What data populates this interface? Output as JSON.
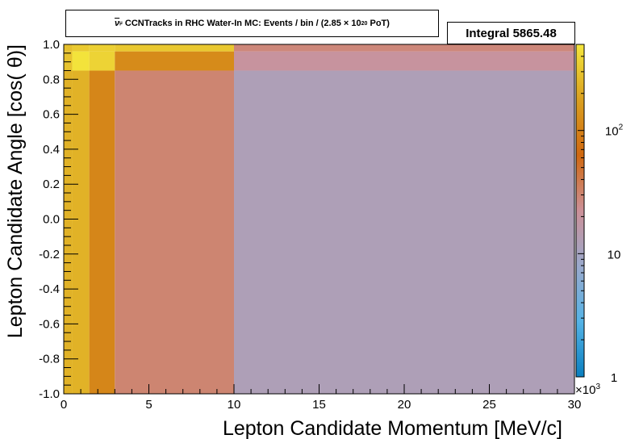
{
  "title": {
    "nu_symbol": "ν",
    "mu_symbol": "μ",
    "text": "CCNTracks in RHC Water-In MC: Events / bin / (2.85 ×",
    "exp_base": "10",
    "exp_power": "20",
    "suffix": "PoT)"
  },
  "stats": {
    "label": "Integral",
    "value": "5865.48"
  },
  "colorbar": {
    "scale": "log",
    "range": [
      1,
      500
    ],
    "tick_labels": [
      {
        "value": 1,
        "text": "1"
      },
      {
        "value": 10,
        "text": "10"
      },
      {
        "value": 100,
        "text": "10",
        "sup": "2"
      }
    ],
    "palette": [
      "#0a7fbf",
      "#55b3e6",
      "#9aa9cc",
      "#cc9098",
      "#d06810",
      "#daa020",
      "#f4e63c"
    ]
  },
  "chart_data": {
    "type": "heatmap",
    "xlabel": "Lepton Candidate Momentum [MeV/c]",
    "ylabel": "Lepton Candidate Angle [cos( θ)]",
    "x_multiplier": "×10",
    "x_multiplier_power": "3",
    "xlim": [
      0,
      30
    ],
    "ylim": [
      -1.0,
      1.0
    ],
    "x_tick_labels": [
      "0",
      "5",
      "10",
      "15",
      "20",
      "25",
      "30"
    ],
    "x_ticks": [
      0,
      5,
      10,
      15,
      20,
      25,
      30
    ],
    "y_tick_labels": [
      "-1.0",
      "-0.8",
      "-0.6",
      "-0.4",
      "-0.2",
      "0.0",
      "0.2",
      "0.4",
      "0.6",
      "0.8",
      "1.0"
    ],
    "y_ticks": [
      -1.0,
      -0.8,
      -0.6,
      -0.4,
      -0.2,
      0.0,
      0.2,
      0.4,
      0.6,
      0.8,
      1.0
    ],
    "z_scale": "log",
    "cells": [
      {
        "x0": 0,
        "x1": 0.5,
        "y0": -1.0,
        "y1": 0.85,
        "z": 230
      },
      {
        "x0": 0.5,
        "x1": 1.5,
        "y0": -1.0,
        "y1": 0.85,
        "z": 230
      },
      {
        "x0": 1.5,
        "x1": 3,
        "y0": -1.0,
        "y1": 0.85,
        "z": 110
      },
      {
        "x0": 3,
        "x1": 10,
        "y0": -1.0,
        "y1": 0.85,
        "z": 30
      },
      {
        "x0": 10,
        "x1": 30,
        "y0": -1.0,
        "y1": 0.85,
        "z": 12
      },
      {
        "x0": 0,
        "x1": 0.5,
        "y0": 0.85,
        "y1": 0.96,
        "z": 300
      },
      {
        "x0": 0.5,
        "x1": 1.5,
        "y0": 0.85,
        "y1": 0.96,
        "z": 480
      },
      {
        "x0": 1.5,
        "x1": 3,
        "y0": 0.85,
        "y1": 0.96,
        "z": 380
      },
      {
        "x0": 3,
        "x1": 10,
        "y0": 0.85,
        "y1": 0.96,
        "z": 120
      },
      {
        "x0": 10,
        "x1": 30,
        "y0": 0.85,
        "y1": 0.96,
        "z": 20
      },
      {
        "x0": 0,
        "x1": 0.5,
        "y0": 0.96,
        "y1": 1.0,
        "z": 280
      },
      {
        "x0": 0.5,
        "x1": 1.5,
        "y0": 0.96,
        "y1": 1.0,
        "z": 330
      },
      {
        "x0": 1.5,
        "x1": 3,
        "y0": 0.96,
        "y1": 1.0,
        "z": 360
      },
      {
        "x0": 3,
        "x1": 10,
        "y0": 0.96,
        "y1": 1.0,
        "z": 320
      },
      {
        "x0": 10,
        "x1": 30,
        "y0": 0.96,
        "y1": 1.0,
        "z": 28
      }
    ]
  }
}
